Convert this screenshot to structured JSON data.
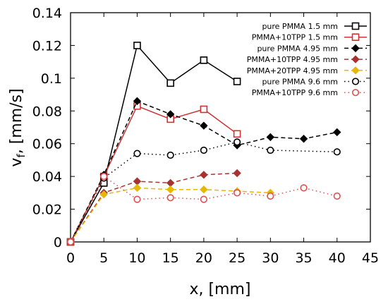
{
  "chart_data": {
    "type": "line",
    "xlabel": "x, [mm]",
    "ylabel_main": "v",
    "ylabel_sub": "f",
    "ylabel_unit": ", [mm/s]",
    "xlim": [
      0,
      45
    ],
    "ylim": [
      0,
      0.14
    ],
    "xticks": [
      "0",
      "5",
      "10",
      "15",
      "20",
      "25",
      "30",
      "35",
      "40",
      "45"
    ],
    "yticks": [
      "0",
      "0.02",
      "0.04",
      "0.06",
      "0.08",
      "0.1",
      "0.12",
      "0.14"
    ],
    "grid": false,
    "legend_position": "top-right",
    "series": [
      {
        "name": "pure PMMA 1.5 mm",
        "color": "#000000",
        "marker": "open-square",
        "line": "solid",
        "x": [
          0,
          5,
          10,
          15,
          20,
          25
        ],
        "y": [
          0,
          0.036,
          0.12,
          0.097,
          0.111,
          0.098
        ]
      },
      {
        "name": "PMMA+10TPP 1.5 mm",
        "color": "#cc3333",
        "marker": "open-square",
        "line": "solid",
        "x": [
          0,
          5,
          10,
          15,
          20,
          25
        ],
        "y": [
          0,
          0.04,
          0.083,
          0.075,
          0.081,
          0.066
        ]
      },
      {
        "name": "pure PMMA 4.95 mm",
        "color": "#000000",
        "marker": "filled-diamond",
        "line": "dashed",
        "x": [
          0,
          5,
          10,
          15,
          20,
          25,
          30,
          35,
          40
        ],
        "y": [
          0,
          0.041,
          0.086,
          0.078,
          0.071,
          0.059,
          0.064,
          0.063,
          0.067
        ]
      },
      {
        "name": "PMMA+10TPP 4.95 mm",
        "color": "#a83232",
        "marker": "filled-diamond",
        "line": "dashed",
        "x": [
          0,
          5,
          10,
          15,
          20,
          25
        ],
        "y": [
          0,
          0.03,
          0.037,
          0.036,
          0.041,
          0.042
        ]
      },
      {
        "name": "PMMA+20TPP 4.95 mm",
        "color": "#e6b800",
        "marker": "filled-diamond",
        "line": "dashed",
        "x": [
          0,
          5,
          10,
          15,
          20,
          25,
          30
        ],
        "y": [
          0,
          0.029,
          0.033,
          0.032,
          0.032,
          0.031,
          0.03
        ]
      },
      {
        "name": "pure PMMA 9.6 mm",
        "color": "#000000",
        "marker": "open-circle",
        "line": "dotted",
        "x": [
          0,
          5,
          10,
          15,
          20,
          25,
          30,
          40
        ],
        "y": [
          0,
          0.039,
          0.054,
          0.053,
          0.056,
          0.061,
          0.056,
          0.055
        ]
      },
      {
        "name": "PMMA+10TPP 9.6 mm",
        "color": "#e05050",
        "marker": "open-circle",
        "line": "dotted",
        "x": [
          0,
          5,
          10,
          15,
          20,
          25,
          30,
          35,
          40
        ],
        "y": [
          0,
          0.04,
          0.026,
          0.027,
          0.026,
          0.03,
          0.028,
          0.033,
          0.028
        ]
      }
    ]
  }
}
